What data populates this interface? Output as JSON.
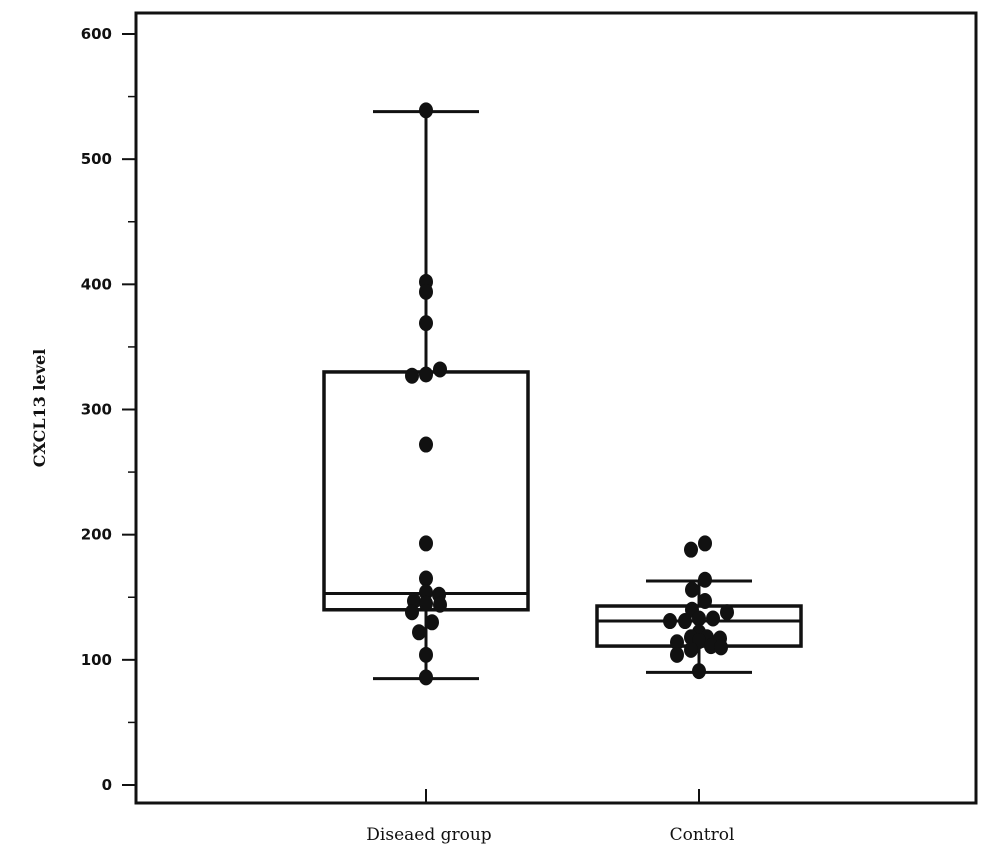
{
  "chart_data": {
    "type": "box",
    "title": "",
    "xlabel": "",
    "ylabel": "CXCL13 level",
    "ylim": [
      -15,
      615
    ],
    "yticks": [
      0,
      100,
      200,
      300,
      400,
      500,
      600
    ],
    "grid": false,
    "categories": [
      "Diseaed group",
      "Control"
    ],
    "boxes": [
      {
        "category": "Diseaed group",
        "whisker_low": 85,
        "q1": 140,
        "median": 153,
        "q3": 330,
        "whisker_high": 538
      },
      {
        "category": "Control",
        "whisker_low": 90,
        "q1": 111,
        "median": 131,
        "q3": 143,
        "whisker_high": 163
      }
    ],
    "points": [
      [
        {
          "dx": 0,
          "y": 539
        },
        {
          "dx": 0,
          "y": 402
        },
        {
          "dx": 0,
          "y": 394
        },
        {
          "dx": 0,
          "y": 369
        },
        {
          "dx": -14,
          "y": 327
        },
        {
          "dx": 0,
          "y": 328
        },
        {
          "dx": 14,
          "y": 332
        },
        {
          "dx": 0,
          "y": 272
        },
        {
          "dx": 0,
          "y": 193
        },
        {
          "dx": 0,
          "y": 165
        },
        {
          "dx": -12,
          "y": 147
        },
        {
          "dx": 0,
          "y": 154
        },
        {
          "dx": 13,
          "y": 152
        },
        {
          "dx": -14,
          "y": 138
        },
        {
          "dx": 0,
          "y": 145
        },
        {
          "dx": 14,
          "y": 144
        },
        {
          "dx": 6,
          "y": 130
        },
        {
          "dx": -7,
          "y": 122
        },
        {
          "dx": 0,
          "y": 104
        },
        {
          "dx": 0,
          "y": 86
        }
      ],
      [
        {
          "dx": 6,
          "y": 193
        },
        {
          "dx": -8,
          "y": 188
        },
        {
          "dx": 6,
          "y": 164
        },
        {
          "dx": -7,
          "y": 156
        },
        {
          "dx": 6,
          "y": 147
        },
        {
          "dx": -7,
          "y": 140
        },
        {
          "dx": 28,
          "y": 138
        },
        {
          "dx": 14,
          "y": 133
        },
        {
          "dx": -14,
          "y": 131
        },
        {
          "dx": -29,
          "y": 131
        },
        {
          "dx": 0,
          "y": 133
        },
        {
          "dx": 0,
          "y": 122
        },
        {
          "dx": 8,
          "y": 118
        },
        {
          "dx": 21,
          "y": 117
        },
        {
          "dx": -8,
          "y": 118
        },
        {
          "dx": -22,
          "y": 114
        },
        {
          "dx": 0,
          "y": 115
        },
        {
          "dx": 12,
          "y": 111
        },
        {
          "dx": 22,
          "y": 110
        },
        {
          "dx": -8,
          "y": 108
        },
        {
          "dx": -22,
          "y": 104
        },
        {
          "dx": 0,
          "y": 91
        }
      ]
    ]
  }
}
